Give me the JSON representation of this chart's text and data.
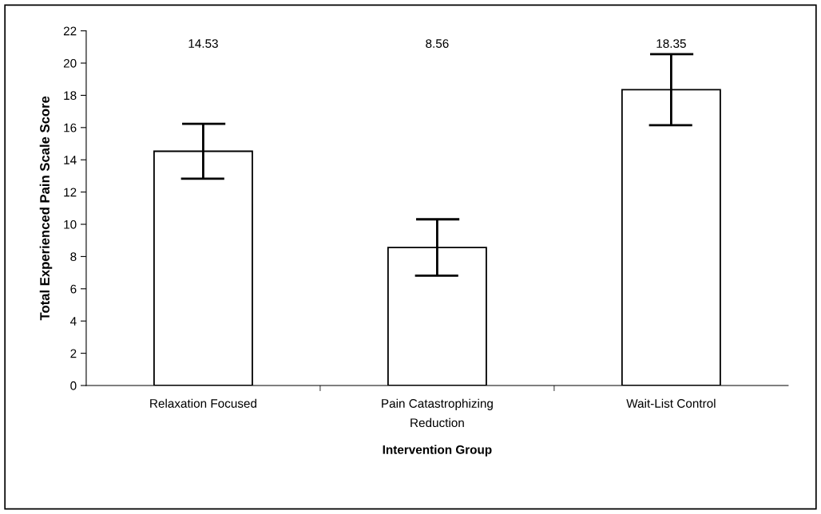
{
  "chart_data": {
    "type": "bar",
    "xlabel": "Intervention Group",
    "ylabel": "Total Experienced Pain Scale Score",
    "categories": [
      "Relaxation Focused",
      "Pain Catastrophizing\nReduction",
      "Wait-List Control"
    ],
    "values": [
      14.53,
      8.56,
      18.35
    ],
    "errors": [
      1.7,
      1.75,
      2.2
    ],
    "color": "#ffffff",
    "ylim": [
      0,
      22
    ],
    "yticks": [
      0,
      2,
      4,
      6,
      8,
      10,
      12,
      14,
      16,
      18,
      20,
      22
    ],
    "annotations": [
      "14.53",
      "8.56",
      "18.35"
    ],
    "grid": false,
    "legend": false
  }
}
